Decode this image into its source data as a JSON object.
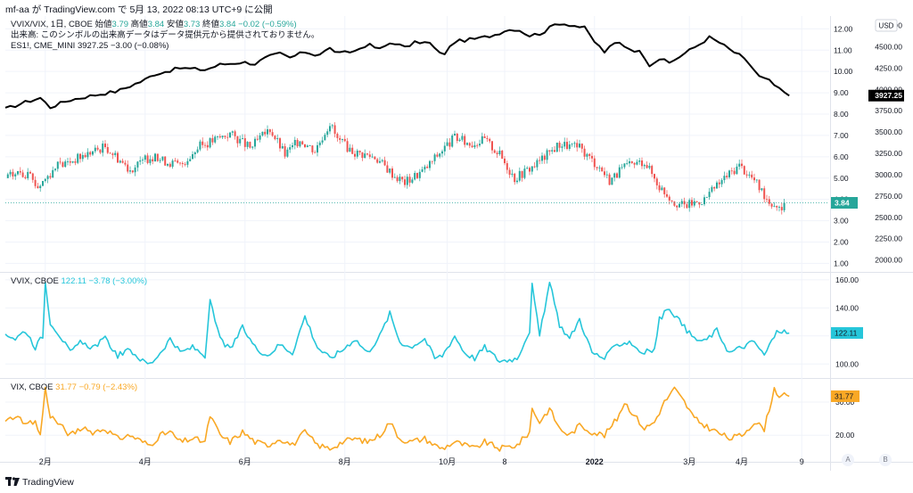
{
  "header": {
    "text": "mf-aa が TradingView.com で 5月 13, 2022 08:13 UTC+9 に公開"
  },
  "footer": {
    "brand": "TradingView"
  },
  "axis_buttons": [
    "A",
    "B"
  ],
  "colors": {
    "es": "#000000",
    "up": "#26a69a",
    "down": "#ef5350",
    "vvix": "#26c6da",
    "vix": "#f9a825",
    "grid": "#f0f3fa",
    "axis_text": "#131722"
  },
  "chart_data": [
    {
      "type": "candlestick",
      "pane": "ratio",
      "legend": {
        "symbol": "VVIX/VIX, 1日, CBOE",
        "o_label": "始値",
        "o": "3.79",
        "h_label": "高値",
        "h": "3.84",
        "l_label": "安値",
        "l": "3.73",
        "c_label": "終値",
        "c": "3.84",
        "chg": "−0.02 (−0.59%)",
        "note": "出来高: このシンボルの出来高データはデータ提供元から提供されておりません。"
      },
      "y_ticks": [
        "12.00",
        "11.00",
        "10.00",
        "9.00",
        "8.00",
        "7.00",
        "6.00",
        "5.00",
        "4.00",
        "3.00",
        "2.00",
        "1.00"
      ],
      "last_value": "3.84",
      "anchors": [
        [
          0,
          5.0
        ],
        [
          6,
          5.3
        ],
        [
          10,
          5.0
        ],
        [
          13,
          4.6
        ],
        [
          20,
          5.5
        ],
        [
          30,
          6.0
        ],
        [
          40,
          6.5
        ],
        [
          50,
          5.4
        ],
        [
          58,
          6.0
        ],
        [
          70,
          5.6
        ],
        [
          78,
          6.5
        ],
        [
          90,
          7.1
        ],
        [
          98,
          6.4
        ],
        [
          106,
          7.3
        ],
        [
          112,
          6.1
        ],
        [
          118,
          6.8
        ],
        [
          124,
          6.3
        ],
        [
          130,
          7.6
        ],
        [
          133,
          6.8
        ],
        [
          140,
          6.2
        ],
        [
          148,
          6.0
        ],
        [
          156,
          5.1
        ],
        [
          160,
          4.8
        ],
        [
          168,
          5.4
        ],
        [
          174,
          6.2
        ],
        [
          180,
          6.9
        ],
        [
          186,
          6.6
        ],
        [
          192,
          6.8
        ],
        [
          198,
          6.1
        ],
        [
          204,
          5.0
        ],
        [
          212,
          5.6
        ],
        [
          222,
          6.6
        ],
        [
          230,
          6.4
        ],
        [
          238,
          5.5
        ],
        [
          242,
          4.9
        ],
        [
          248,
          5.5
        ],
        [
          256,
          5.8
        ],
        [
          262,
          4.6
        ],
        [
          268,
          3.9
        ],
        [
          272,
          3.7
        ],
        [
          280,
          4.0
        ],
        [
          288,
          5.0
        ],
        [
          294,
          5.6
        ],
        [
          300,
          4.9
        ],
        [
          306,
          3.9
        ],
        [
          312,
          3.6
        ]
      ]
    },
    {
      "type": "line",
      "pane": "ratio-overlay",
      "legend": {
        "symbol": "ES1!, CME_MINI",
        "value": "3927.25",
        "chg": "−3.00 (−0.08%)"
      },
      "y_ticks": [
        "4750.00",
        "4500.00",
        "4250.00",
        "4000.00",
        "3750.00",
        "3500.00",
        "3250.00",
        "3000.00",
        "2750.00",
        "2500.00",
        "2250.00",
        "2000.00"
      ],
      "last_value": "3927.25",
      "unit": "USD",
      "anchors": [
        [
          0,
          3770
        ],
        [
          8,
          3850
        ],
        [
          14,
          3900
        ],
        [
          18,
          3790
        ],
        [
          25,
          3870
        ],
        [
          35,
          3930
        ],
        [
          45,
          3980
        ],
        [
          55,
          4100
        ],
        [
          60,
          4180
        ],
        [
          70,
          4250
        ],
        [
          80,
          4230
        ],
        [
          86,
          4290
        ],
        [
          95,
          4320
        ],
        [
          100,
          4300
        ],
        [
          105,
          4380
        ],
        [
          110,
          4420
        ],
        [
          114,
          4370
        ],
        [
          120,
          4440
        ],
        [
          125,
          4400
        ],
        [
          130,
          4480
        ],
        [
          134,
          4420
        ],
        [
          140,
          4450
        ],
        [
          145,
          4530
        ],
        [
          150,
          4470
        ],
        [
          155,
          4560
        ],
        [
          160,
          4490
        ],
        [
          165,
          4560
        ],
        [
          170,
          4540
        ],
        [
          175,
          4390
        ],
        [
          180,
          4560
        ],
        [
          190,
          4600
        ],
        [
          196,
          4640
        ],
        [
          200,
          4690
        ],
        [
          205,
          4710
        ],
        [
          210,
          4630
        ],
        [
          215,
          4660
        ],
        [
          221,
          4780
        ],
        [
          226,
          4760
        ],
        [
          232,
          4720
        ],
        [
          236,
          4560
        ],
        [
          240,
          4440
        ],
        [
          245,
          4560
        ],
        [
          250,
          4480
        ],
        [
          255,
          4430
        ],
        [
          258,
          4290
        ],
        [
          262,
          4360
        ],
        [
          266,
          4310
        ],
        [
          272,
          4420
        ],
        [
          278,
          4530
        ],
        [
          282,
          4610
        ],
        [
          286,
          4550
        ],
        [
          290,
          4470
        ],
        [
          294,
          4400
        ],
        [
          298,
          4300
        ],
        [
          302,
          4150
        ],
        [
          306,
          4100
        ],
        [
          310,
          4000
        ],
        [
          314,
          3927
        ]
      ]
    },
    {
      "type": "line",
      "pane": "vvix",
      "legend": {
        "symbol": "VVIX, CBOE",
        "value": "122.11",
        "chg": "−3.78 (−3.00%)"
      },
      "y_ticks": [
        "160.00",
        "140.00",
        "120.00",
        "100.00"
      ],
      "last_value": "122.11",
      "anchors": [
        [
          0,
          122
        ],
        [
          4,
          118
        ],
        [
          8,
          124
        ],
        [
          12,
          112
        ],
        [
          15,
          120
        ],
        [
          16,
          158
        ],
        [
          18,
          130
        ],
        [
          22,
          120
        ],
        [
          26,
          108
        ],
        [
          30,
          115
        ],
        [
          35,
          112
        ],
        [
          40,
          118
        ],
        [
          45,
          106
        ],
        [
          50,
          110
        ],
        [
          55,
          102
        ],
        [
          58,
          100
        ],
        [
          62,
          108
        ],
        [
          66,
          118
        ],
        [
          70,
          108
        ],
        [
          75,
          112
        ],
        [
          80,
          106
        ],
        [
          82,
          144
        ],
        [
          86,
          118
        ],
        [
          90,
          110
        ],
        [
          95,
          126
        ],
        [
          100,
          112
        ],
        [
          105,
          106
        ],
        [
          110,
          114
        ],
        [
          115,
          108
        ],
        [
          120,
          134
        ],
        [
          125,
          112
        ],
        [
          130,
          104
        ],
        [
          135,
          110
        ],
        [
          140,
          118
        ],
        [
          145,
          108
        ],
        [
          150,
          120
        ],
        [
          154,
          136
        ],
        [
          158,
          116
        ],
        [
          162,
          112
        ],
        [
          168,
          118
        ],
        [
          172,
          104
        ],
        [
          175,
          106
        ],
        [
          180,
          120
        ],
        [
          184,
          108
        ],
        [
          188,
          104
        ],
        [
          192,
          112
        ],
        [
          198,
          102
        ],
        [
          205,
          104
        ],
        [
          210,
          124
        ],
        [
          211,
          156
        ],
        [
          214,
          120
        ],
        [
          218,
          158
        ],
        [
          222,
          128
        ],
        [
          226,
          118
        ],
        [
          230,
          132
        ],
        [
          235,
          108
        ],
        [
          240,
          104
        ],
        [
          245,
          114
        ],
        [
          250,
          116
        ],
        [
          255,
          108
        ],
        [
          260,
          110
        ],
        [
          262,
          132
        ],
        [
          266,
          140
        ],
        [
          272,
          126
        ],
        [
          276,
          118
        ],
        [
          280,
          116
        ],
        [
          285,
          124
        ],
        [
          290,
          108
        ],
        [
          295,
          112
        ],
        [
          300,
          116
        ],
        [
          304,
          106
        ],
        [
          308,
          120
        ],
        [
          310,
          124
        ],
        [
          314,
          122
        ]
      ]
    },
    {
      "type": "line",
      "pane": "vix",
      "legend": {
        "symbol": "VIX, CBOE",
        "value": "31.77",
        "chg": "−0.79 (−2.43%)"
      },
      "y_ticks": [
        "30.00",
        "20.00"
      ],
      "last_value": "31.77",
      "anchors": [
        [
          0,
          24
        ],
        [
          4,
          26
        ],
        [
          8,
          23
        ],
        [
          12,
          24
        ],
        [
          14,
          20
        ],
        [
          16,
          34
        ],
        [
          18,
          26
        ],
        [
          22,
          23
        ],
        [
          26,
          20
        ],
        [
          30,
          22
        ],
        [
          35,
          21
        ],
        [
          40,
          22
        ],
        [
          45,
          19
        ],
        [
          50,
          20
        ],
        [
          55,
          18
        ],
        [
          58,
          17
        ],
        [
          62,
          20
        ],
        [
          66,
          21
        ],
        [
          70,
          18
        ],
        [
          75,
          19
        ],
        [
          80,
          18
        ],
        [
          82,
          26
        ],
        [
          86,
          20
        ],
        [
          90,
          18
        ],
        [
          95,
          21
        ],
        [
          100,
          18
        ],
        [
          105,
          17
        ],
        [
          110,
          19
        ],
        [
          115,
          17
        ],
        [
          120,
          21
        ],
        [
          125,
          17
        ],
        [
          130,
          16
        ],
        [
          135,
          18
        ],
        [
          140,
          19
        ],
        [
          145,
          18
        ],
        [
          150,
          20
        ],
        [
          154,
          24
        ],
        [
          158,
          19
        ],
        [
          162,
          18
        ],
        [
          168,
          19
        ],
        [
          172,
          17
        ],
        [
          175,
          16
        ],
        [
          180,
          18
        ],
        [
          184,
          17
        ],
        [
          188,
          16
        ],
        [
          192,
          18
        ],
        [
          198,
          16
        ],
        [
          205,
          17
        ],
        [
          210,
          21
        ],
        [
          211,
          28
        ],
        [
          214,
          24
        ],
        [
          218,
          28
        ],
        [
          222,
          22
        ],
        [
          226,
          20
        ],
        [
          230,
          23
        ],
        [
          235,
          21
        ],
        [
          240,
          20
        ],
        [
          245,
          25
        ],
        [
          248,
          30
        ],
        [
          252,
          26
        ],
        [
          256,
          22
        ],
        [
          260,
          24
        ],
        [
          264,
          30
        ],
        [
          268,
          34
        ],
        [
          272,
          30
        ],
        [
          276,
          25
        ],
        [
          280,
          23
        ],
        [
          285,
          21
        ],
        [
          290,
          19
        ],
        [
          295,
          20
        ],
        [
          300,
          24
        ],
        [
          304,
          22
        ],
        [
          308,
          34
        ],
        [
          310,
          32
        ],
        [
          314,
          31.77
        ]
      ]
    }
  ],
  "x_axis": {
    "labels": [
      {
        "text": "2月",
        "d": 16
      },
      {
        "text": "4月",
        "d": 56
      },
      {
        "text": "6月",
        "d": 96
      },
      {
        "text": "8月",
        "d": 136
      },
      {
        "text": "10月",
        "d": 177
      },
      {
        "text": "8",
        "d": 200
      },
      {
        "text": "2022",
        "d": 236
      },
      {
        "text": "3月",
        "d": 274
      },
      {
        "text": "4月",
        "d": 295
      },
      {
        "text": "9",
        "d": 319
      }
    ]
  }
}
